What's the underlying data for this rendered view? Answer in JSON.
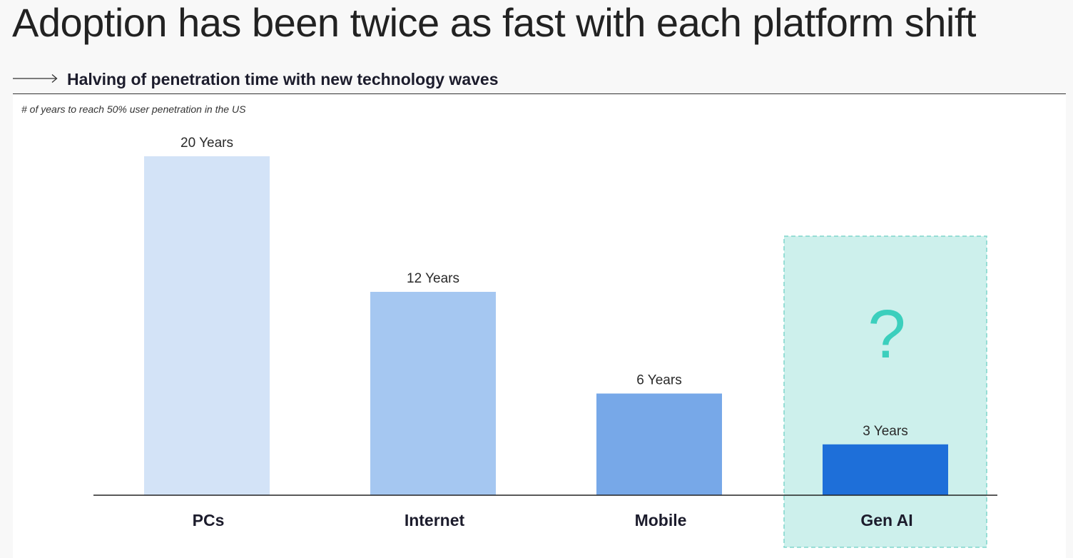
{
  "page": {
    "title": "Adoption has been twice as fast with each platform shift"
  },
  "section": {
    "title": "Halving of penetration time with new technology waves",
    "icon": "right-arrow-icon"
  },
  "chart_data": {
    "type": "bar",
    "title": "",
    "subtitle": "# of years to reach 50% user penetration in the US",
    "xlabel": "",
    "ylabel": "",
    "ylim": [
      0,
      20
    ],
    "grid": false,
    "categories": [
      "PCs",
      "Internet",
      "Mobile",
      "Gen AI"
    ],
    "values": [
      20,
      12,
      6,
      3
    ],
    "value_labels": [
      "20 Years",
      "12 Years",
      "6 Years",
      "3 Years"
    ],
    "bar_colors": [
      "#d3e3f7",
      "#a5c7f1",
      "#77a8e8",
      "#1e6fd9"
    ],
    "highlight": {
      "category": "Gen AI",
      "annotation": "?",
      "fill": "#cdf0ec",
      "border": "#7fd6cb",
      "annotation_color": "#3ccfbd"
    }
  }
}
